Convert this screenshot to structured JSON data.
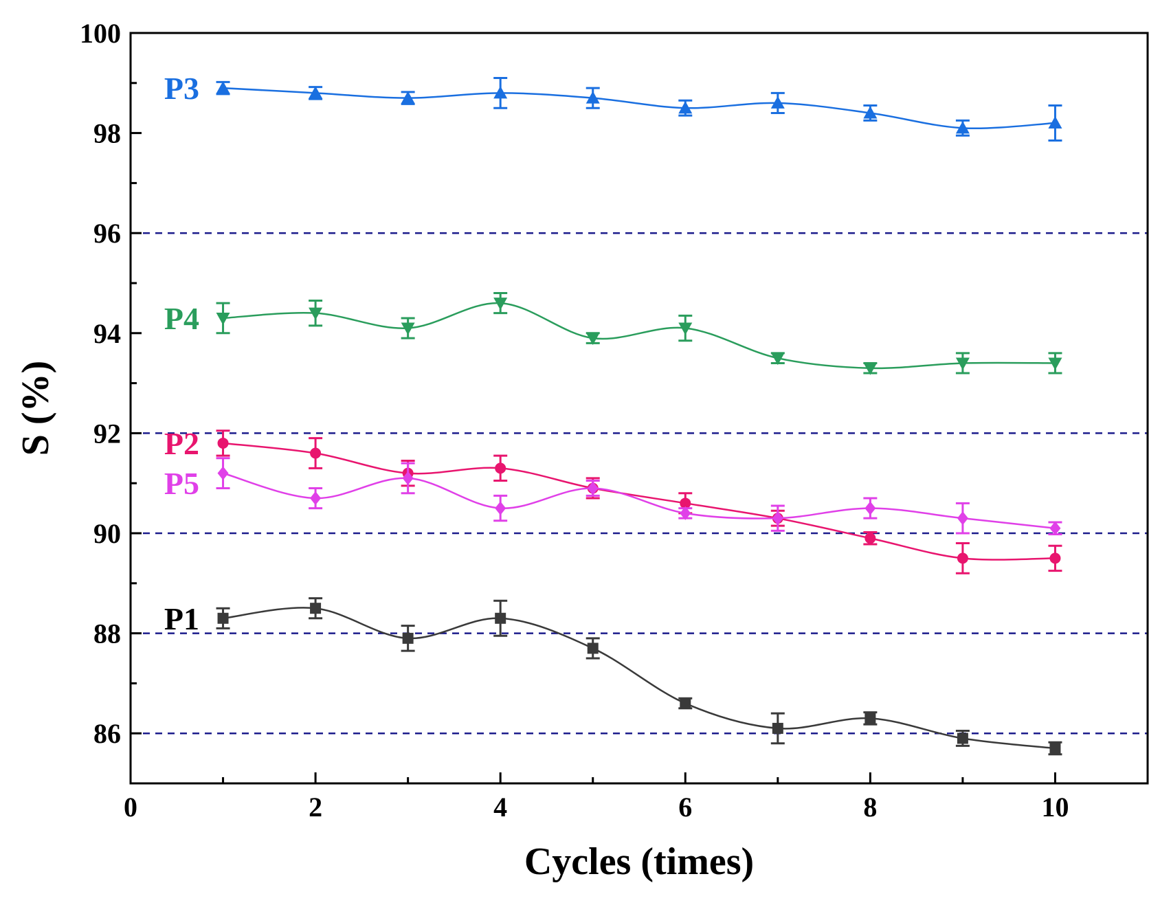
{
  "chart_data": {
    "type": "line",
    "title": "",
    "xlabel": "Cycles (times)",
    "ylabel": "S (%)",
    "xlim": [
      0,
      11
    ],
    "ylim": [
      85,
      100
    ],
    "xticks": [
      0,
      2,
      4,
      6,
      8,
      10
    ],
    "yticks": [
      86,
      88,
      90,
      92,
      94,
      96,
      98,
      100
    ],
    "x_tick_labels": [
      "0",
      "2",
      "4",
      "6",
      "8",
      "10"
    ],
    "y_tick_labels": [
      "86",
      "88",
      "90",
      "92",
      "94",
      "96",
      "98",
      "100"
    ],
    "reference_lines": [
      86,
      88,
      90,
      92,
      96
    ],
    "x": [
      1,
      2,
      3,
      4,
      5,
      6,
      7,
      8,
      9,
      10
    ],
    "series": [
      {
        "name": "P1",
        "color": "#3a3a3a",
        "marker": "square",
        "values": [
          88.3,
          88.5,
          87.9,
          88.3,
          87.7,
          86.6,
          86.1,
          86.3,
          85.9,
          85.7
        ],
        "errors": [
          0.2,
          0.2,
          0.25,
          0.35,
          0.2,
          0.1,
          0.3,
          0.12,
          0.15,
          0.12
        ]
      },
      {
        "name": "P2",
        "color": "#e8156e",
        "marker": "circle",
        "values": [
          91.8,
          91.6,
          91.2,
          91.3,
          90.9,
          90.6,
          90.3,
          89.9,
          89.5,
          89.5
        ],
        "errors": [
          0.25,
          0.3,
          0.25,
          0.25,
          0.2,
          0.2,
          0.15,
          0.12,
          0.3,
          0.25
        ]
      },
      {
        "name": "P3",
        "color": "#1a6fe0",
        "marker": "triangle-up",
        "values": [
          98.9,
          98.8,
          98.7,
          98.8,
          98.7,
          98.5,
          98.6,
          98.4,
          98.1,
          98.2
        ],
        "errors": [
          0.12,
          0.12,
          0.12,
          0.3,
          0.2,
          0.15,
          0.2,
          0.15,
          0.15,
          0.35
        ]
      },
      {
        "name": "P4",
        "color": "#2a9d5c",
        "marker": "triangle-down",
        "values": [
          94.3,
          94.4,
          94.1,
          94.6,
          93.9,
          94.1,
          93.5,
          93.3,
          93.4,
          93.4
        ],
        "errors": [
          0.3,
          0.25,
          0.2,
          0.2,
          0.1,
          0.25,
          0.1,
          0.1,
          0.2,
          0.2
        ]
      },
      {
        "name": "P5",
        "color": "#e040e8",
        "marker": "diamond",
        "values": [
          91.2,
          90.7,
          91.1,
          90.5,
          90.9,
          90.4,
          90.3,
          90.5,
          90.3,
          90.1
        ],
        "errors": [
          0.3,
          0.2,
          0.3,
          0.25,
          0.15,
          0.1,
          0.25,
          0.2,
          0.3,
          0.12
        ]
      }
    ],
    "series_labels": [
      {
        "text": "P3",
        "color": "#1a6fe0",
        "at_y": 98.9
      },
      {
        "text": "P4",
        "color": "#2a9d5c",
        "at_y": 94.3
      },
      {
        "text": "P2",
        "color": "#e8156e",
        "at_y": 91.8
      },
      {
        "text": "P5",
        "color": "#e040e8",
        "at_y": 91.0
      },
      {
        "text": "P1",
        "color": "#000000",
        "at_y": 88.3
      }
    ],
    "legend": "inline-left",
    "grid": false,
    "reference_line_color": "#1c1c8c"
  }
}
